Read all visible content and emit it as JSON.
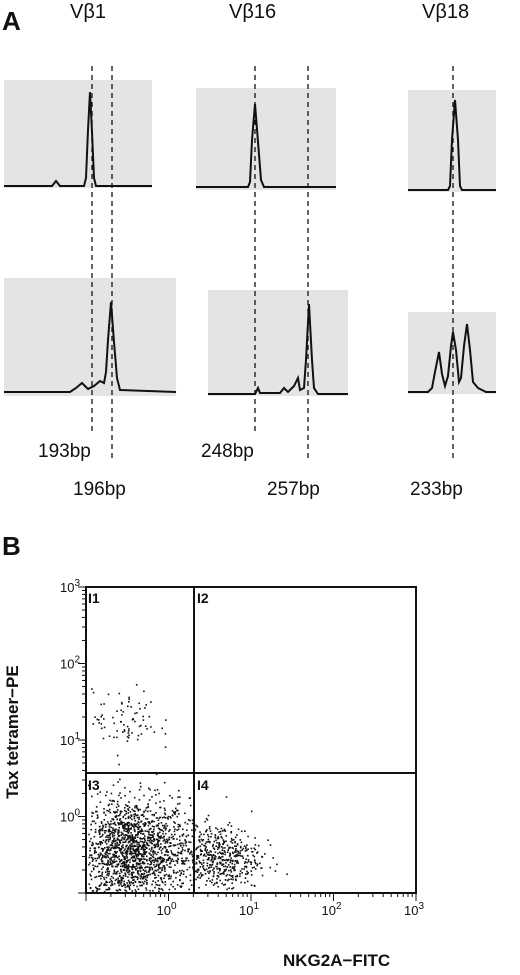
{
  "panel_a": {
    "letter": "A",
    "columns": [
      {
        "label": "Vβ1",
        "sizes": [
          "193bp",
          "196bp"
        ]
      },
      {
        "label": "Vβ16",
        "sizes": [
          "248bp",
          "257bp"
        ]
      },
      {
        "label": "Vβ18",
        "sizes": [
          "233bp"
        ]
      }
    ]
  },
  "panel_b": {
    "letter": "B",
    "y_axis_title": "Tax tetramer−PE",
    "x_axis_title": "NKG2A−FITC",
    "y_ticks": [
      {
        "base": "10",
        "exp": "0"
      },
      {
        "base": "10",
        "exp": "1"
      },
      {
        "base": "10",
        "exp": "2"
      },
      {
        "base": "10",
        "exp": "3"
      }
    ],
    "x_ticks": [
      {
        "base": "10",
        "exp": "0"
      },
      {
        "base": "10",
        "exp": "1"
      },
      {
        "base": "10",
        "exp": "2"
      },
      {
        "base": "10",
        "exp": "3"
      }
    ],
    "quadrants": [
      "I1",
      "I2",
      "I3",
      "I4"
    ]
  },
  "chart_data": {
    "type": "scatter",
    "xscale": "log",
    "yscale": "log",
    "xlim": [
      0.1,
      1000
    ],
    "ylim": [
      0.1,
      1000
    ],
    "quadrant_gates": {
      "x": 1.2,
      "y": 2.5
    },
    "populations": [
      {
        "quadrant": "I3",
        "center": [
          0.35,
          0.35
        ],
        "spread_decades": [
          0.35,
          0.35
        ],
        "points": 1800
      },
      {
        "quadrant": "I4",
        "center": [
          4.0,
          0.3
        ],
        "spread_decades": [
          0.25,
          0.22
        ],
        "points": 500
      },
      {
        "quadrant": "I1",
        "center": [
          0.3,
          18
        ],
        "spread_decades": [
          0.2,
          0.2
        ],
        "points": 80
      }
    ],
    "grid": false,
    "colors": {
      "points": "#111111",
      "lines": "#111111",
      "gel_background": "#e4e4e4"
    }
  }
}
